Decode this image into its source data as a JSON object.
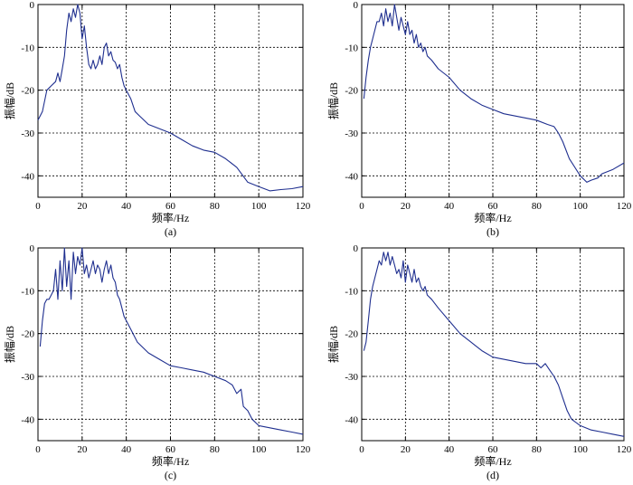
{
  "figure": {
    "panels": [
      "a",
      "b",
      "c",
      "d"
    ]
  },
  "chart_data": [
    {
      "type": "line",
      "panel_label": "(a)",
      "xlabel": "频率/Hz",
      "ylabel": "振幅/dB",
      "xlim": [
        0,
        120
      ],
      "ylim": [
        -45,
        0
      ],
      "xticks": [
        0,
        20,
        40,
        60,
        80,
        100,
        120
      ],
      "yticks": [
        0,
        -10,
        -20,
        -30,
        -40
      ],
      "grid": true,
      "line_color": "#1f2f8f",
      "x": [
        0,
        2,
        4,
        5,
        6,
        8,
        9,
        10,
        11,
        12,
        13,
        14,
        15,
        16,
        17,
        18,
        19,
        20,
        21,
        22,
        23,
        24,
        25,
        26,
        27,
        28,
        29,
        30,
        31,
        32,
        33,
        34,
        35,
        36,
        37,
        38,
        39,
        40,
        42,
        44,
        46,
        50,
        55,
        60,
        65,
        70,
        75,
        80,
        85,
        90,
        95,
        100,
        105,
        110,
        115,
        120
      ],
      "y": [
        -27,
        -25,
        -20,
        -19.5,
        -19,
        -18,
        -16,
        -18,
        -15,
        -12,
        -6,
        -2,
        -4,
        -1,
        -3,
        0,
        -2,
        -8,
        -5,
        -10,
        -14,
        -15,
        -13,
        -15,
        -14,
        -12,
        -14,
        -10,
        -9,
        -12,
        -11,
        -13,
        -13.5,
        -15,
        -14,
        -17,
        -19,
        -20,
        -22,
        -25,
        -26,
        -28,
        -29,
        -30,
        -31.5,
        -33,
        -34,
        -34.5,
        -36,
        -38,
        -41.5,
        -42.5,
        -43.5,
        -43.2,
        -43,
        -42.5
      ]
    },
    {
      "type": "line",
      "panel_label": "(b)",
      "xlabel": "频率/Hz",
      "ylabel": "振幅/dB",
      "xlim": [
        0,
        120
      ],
      "ylim": [
        -45,
        0
      ],
      "xticks": [
        0,
        20,
        40,
        60,
        80,
        100,
        120
      ],
      "yticks": [
        0,
        -10,
        -20,
        -30,
        -40
      ],
      "grid": true,
      "line_color": "#1f2f8f",
      "x": [
        1,
        2,
        3,
        4,
        5,
        6,
        7,
        8,
        9,
        10,
        11,
        12,
        13,
        14,
        15,
        16,
        17,
        18,
        19,
        20,
        21,
        22,
        23,
        24,
        25,
        26,
        27,
        28,
        29,
        30,
        32,
        35,
        40,
        45,
        50,
        55,
        60,
        65,
        70,
        75,
        80,
        85,
        88,
        90,
        92,
        95,
        100,
        103,
        105,
        108,
        110,
        115,
        120
      ],
      "y": [
        -22,
        -17,
        -13,
        -10,
        -8,
        -6,
        -4,
        -4,
        -2,
        -5,
        -1,
        -4,
        -2,
        -5,
        0,
        -3,
        -6,
        -3,
        -5,
        -7,
        -4,
        -7,
        -6,
        -9,
        -7,
        -10,
        -9,
        -11,
        -10,
        -12,
        -13,
        -15,
        -17,
        -20,
        -22,
        -23.5,
        -24.5,
        -25.5,
        -26,
        -26.5,
        -27,
        -28,
        -28.5,
        -30,
        -32,
        -36,
        -40,
        -41.5,
        -41,
        -40.5,
        -39.5,
        -38.5,
        -37
      ]
    },
    {
      "type": "line",
      "panel_label": "(c)",
      "xlabel": "频率/Hz",
      "ylabel": "振幅/dB",
      "xlim": [
        0,
        120
      ],
      "ylim": [
        -45,
        0
      ],
      "xticks": [
        0,
        20,
        40,
        60,
        80,
        100,
        120
      ],
      "yticks": [
        0,
        -10,
        -20,
        -30,
        -40
      ],
      "grid": true,
      "line_color": "#1f2f8f",
      "x": [
        1,
        2,
        3,
        4,
        5,
        6,
        7,
        8,
        9,
        10,
        11,
        12,
        13,
        14,
        15,
        16,
        17,
        18,
        19,
        20,
        21,
        22,
        23,
        24,
        25,
        26,
        27,
        28,
        29,
        30,
        31,
        32,
        33,
        34,
        35,
        36,
        37,
        38,
        39,
        40,
        42,
        45,
        50,
        55,
        60,
        65,
        70,
        75,
        80,
        85,
        88,
        90,
        92,
        93,
        95,
        97,
        100,
        105,
        110,
        115,
        120
      ],
      "y": [
        -23,
        -17,
        -13,
        -12,
        -12,
        -11,
        -10,
        -5,
        -12,
        -3,
        -10,
        0,
        -9,
        -3,
        -12,
        -1,
        -6,
        -2,
        -4,
        0,
        -6,
        -4,
        -7,
        -5,
        -3,
        -6,
        -4,
        -5,
        -8,
        -5,
        -3,
        -6,
        -4,
        -7,
        -8,
        -11,
        -12,
        -14,
        -16,
        -17,
        -19,
        -22,
        -24.5,
        -26,
        -27.5,
        -28,
        -28.5,
        -29,
        -30,
        -31,
        -32,
        -34,
        -33,
        -37,
        -38,
        -40,
        -41.5,
        -42,
        -42.5,
        -43,
        -43.5
      ]
    },
    {
      "type": "line",
      "panel_label": "(d)",
      "xlabel": "频率/Hz",
      "ylabel": "振幅/dB",
      "xlim": [
        0,
        120
      ],
      "ylim": [
        -45,
        0
      ],
      "xticks": [
        0,
        20,
        40,
        60,
        80,
        100,
        120
      ],
      "yticks": [
        0,
        -10,
        -20,
        -30,
        -40
      ],
      "grid": true,
      "line_color": "#1f2f8f",
      "x": [
        1,
        2,
        3,
        4,
        5,
        6,
        7,
        8,
        9,
        10,
        11,
        12,
        13,
        14,
        15,
        16,
        17,
        18,
        19,
        20,
        21,
        22,
        23,
        24,
        25,
        26,
        27,
        28,
        29,
        30,
        32,
        35,
        40,
        45,
        50,
        55,
        60,
        65,
        70,
        75,
        80,
        82,
        84,
        86,
        88,
        90,
        92,
        94,
        96,
        100,
        105,
        110,
        115,
        120
      ],
      "y": [
        -24,
        -22,
        -17,
        -12,
        -9,
        -7,
        -5,
        -3,
        -4,
        -1,
        -3,
        -1,
        -4,
        -2,
        -4,
        -6,
        -5,
        -7,
        -3,
        -8,
        -4,
        -6,
        -8,
        -5,
        -8,
        -7,
        -9,
        -10,
        -9,
        -11,
        -12,
        -14,
        -17,
        -20,
        -22,
        -24,
        -25.5,
        -26,
        -26.5,
        -27,
        -27,
        -28,
        -27,
        -28.5,
        -30,
        -32,
        -35,
        -38,
        -40,
        -41.5,
        -42.5,
        -43,
        -43.5,
        -44
      ]
    }
  ]
}
